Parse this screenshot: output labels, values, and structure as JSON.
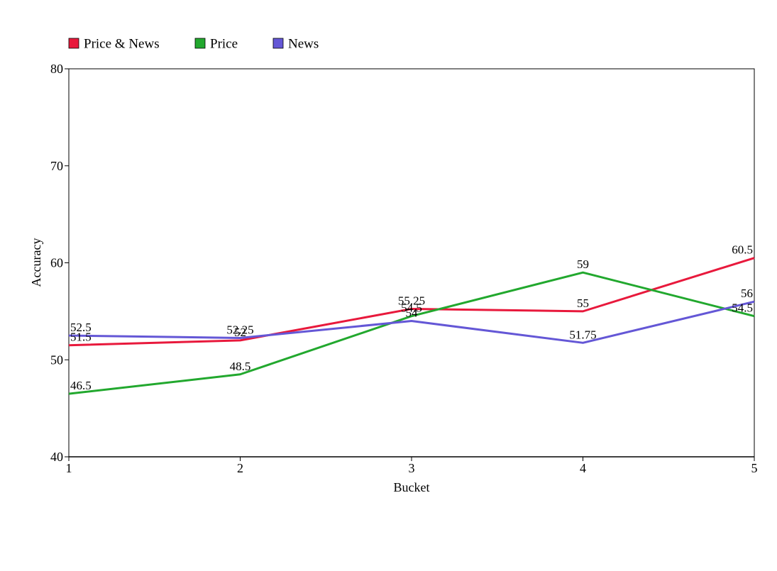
{
  "chart_data": {
    "type": "line",
    "title": "",
    "xlabel": "Bucket",
    "ylabel": "Accuracy",
    "x": [
      "1",
      "2",
      "3",
      "4",
      "5"
    ],
    "ylim": [
      40,
      80
    ],
    "yticks": [
      "40",
      "50",
      "60",
      "70",
      "80"
    ],
    "grid": false,
    "legend_position": "top-left",
    "series": [
      {
        "name": "Price & News",
        "color": "#e8193c",
        "values": [
          51.5,
          52,
          55.25,
          55,
          60.5
        ],
        "labels": [
          "51.5",
          "52",
          "55.25",
          "55",
          "60.5"
        ]
      },
      {
        "name": "Price",
        "color": "#22a82e",
        "values": [
          46.5,
          48.5,
          54.5,
          59,
          54.5
        ],
        "labels": [
          "46.5",
          "48.5",
          "54.5",
          "59",
          "54.5"
        ]
      },
      {
        "name": "News",
        "color": "#6457d6",
        "values": [
          52.5,
          52.25,
          54,
          51.75,
          56
        ],
        "labels": [
          "52.5",
          "52.25",
          "54",
          "51.75",
          "56"
        ]
      }
    ]
  }
}
